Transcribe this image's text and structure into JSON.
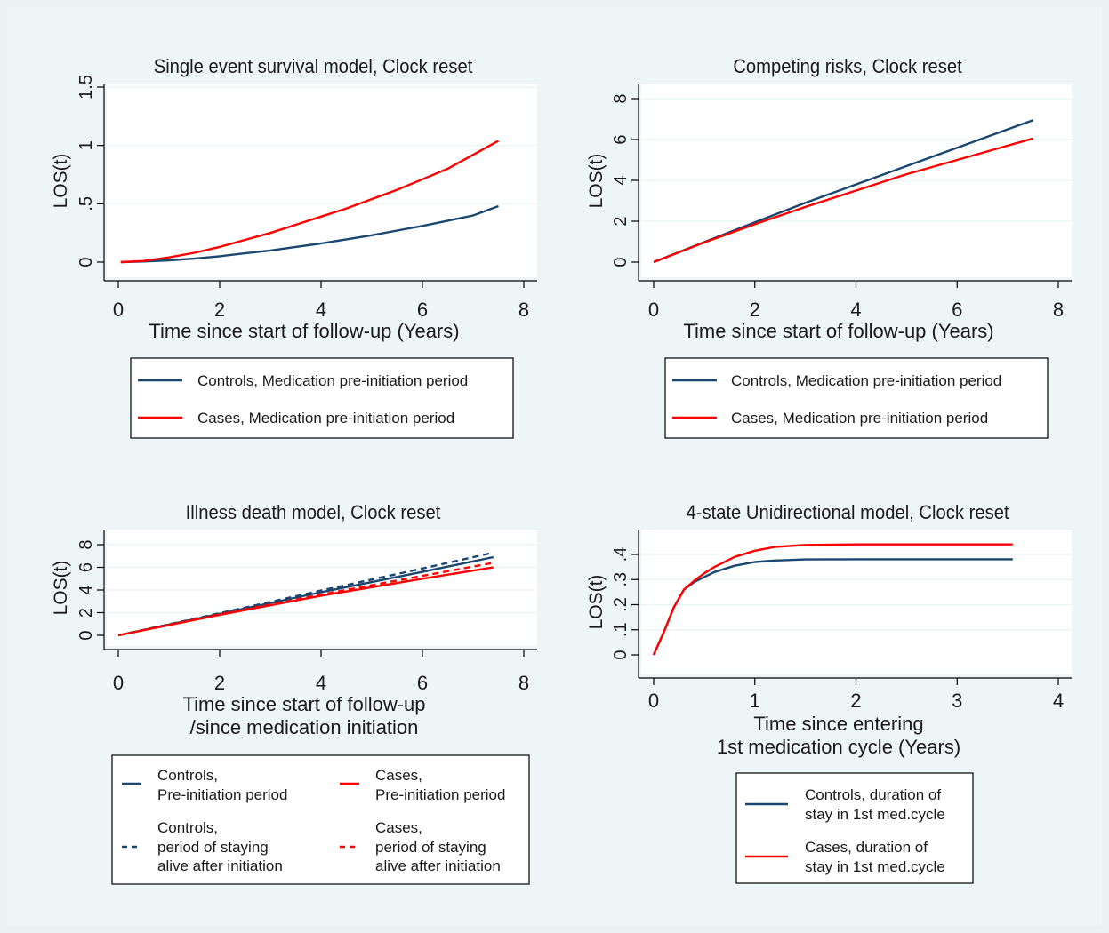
{
  "colors": {
    "outer_bg": "#eaf2f3",
    "panel_bg": "#ffffff",
    "controls": "#1a476f",
    "cases": "#ff0000"
  },
  "chart_data": [
    {
      "type": "line",
      "title": "Single event survival model, Clock reset",
      "xlabel": [
        "Time since start of follow-up (Years)"
      ],
      "ylabel": "LOS(t)",
      "xlim": [
        0,
        8
      ],
      "ylim": [
        0,
        1.5
      ],
      "xticks": [
        0,
        2,
        4,
        6,
        8
      ],
      "xtick_labels": [
        "0",
        "2",
        "4",
        "6",
        "8"
      ],
      "yticks": [
        0,
        0.5,
        1,
        1.5
      ],
      "ytick_labels": [
        "0",
        ".5",
        "1",
        "1.5"
      ],
      "grid": "horizontal",
      "series": [
        {
          "name": "Controls, Medication pre-initiation period",
          "color": "#1a476f",
          "dash": false,
          "x": [
            0.05,
            0.5,
            1,
            1.5,
            2,
            2.5,
            3,
            3.5,
            4,
            4.5,
            5,
            5.5,
            6,
            6.5,
            7,
            7.5
          ],
          "y": [
            0,
            0.005,
            0.015,
            0.03,
            0.05,
            0.075,
            0.1,
            0.13,
            0.16,
            0.195,
            0.23,
            0.27,
            0.31,
            0.355,
            0.4,
            0.48
          ]
        },
        {
          "name": "Cases, Medication pre-initiation period",
          "color": "#ff0000",
          "dash": false,
          "x": [
            0.05,
            0.5,
            1,
            1.5,
            2,
            2.5,
            3,
            3.5,
            4,
            4.5,
            5,
            5.5,
            6,
            6.5,
            7,
            7.5
          ],
          "y": [
            0,
            0.01,
            0.04,
            0.08,
            0.13,
            0.19,
            0.25,
            0.32,
            0.39,
            0.46,
            0.54,
            0.62,
            0.71,
            0.8,
            0.92,
            1.04
          ]
        }
      ],
      "legend": {
        "columns": 1,
        "items": [
          {
            "text": [
              "Controls, Medication pre-initiation period"
            ],
            "series": 0
          },
          {
            "text": [
              "Cases, Medication pre-initiation period"
            ],
            "series": 1
          }
        ]
      }
    },
    {
      "type": "line",
      "title": "Competing risks, Clock reset",
      "xlabel": [
        "Time since start of follow-up (Years)"
      ],
      "ylabel": "LOS(t)",
      "xlim": [
        0,
        8
      ],
      "ylim": [
        0,
        8
      ],
      "xticks": [
        0,
        2,
        4,
        6,
        8
      ],
      "xtick_labels": [
        "0",
        "2",
        "4",
        "6",
        "8"
      ],
      "yticks": [
        0,
        2,
        4,
        6,
        8
      ],
      "ytick_labels": [
        "0",
        "2",
        "4",
        "6",
        "8"
      ],
      "grid": "horizontal",
      "series": [
        {
          "name": "Controls, Medication pre-initiation period",
          "color": "#1a476f",
          "dash": false,
          "x": [
            0,
            1,
            2,
            3,
            4,
            5,
            6,
            7,
            7.5
          ],
          "y": [
            0,
            0.98,
            1.95,
            2.9,
            3.8,
            4.7,
            5.6,
            6.5,
            6.95
          ]
        },
        {
          "name": "Cases, Medication pre-initiation period",
          "color": "#ff0000",
          "dash": false,
          "x": [
            0,
            1,
            2,
            3,
            4,
            5,
            6,
            7,
            7.5
          ],
          "y": [
            0,
            0.96,
            1.85,
            2.7,
            3.5,
            4.3,
            5.0,
            5.7,
            6.05
          ]
        }
      ],
      "legend": {
        "columns": 1,
        "items": [
          {
            "text": [
              "Controls, Medication pre-initiation period"
            ],
            "series": 0
          },
          {
            "text": [
              "Cases, Medication pre-initiation period"
            ],
            "series": 1
          }
        ]
      }
    },
    {
      "type": "line",
      "title": "Illness death model, Clock reset",
      "xlabel": [
        "Time since start of follow-up",
        "/since medication initiation"
      ],
      "ylabel": "LOS(t)",
      "xlim": [
        0,
        8
      ],
      "ylim": [
        0,
        8
      ],
      "xticks": [
        0,
        2,
        4,
        6,
        8
      ],
      "xtick_labels": [
        "0",
        "2",
        "4",
        "6",
        "8"
      ],
      "yticks": [
        0,
        2,
        4,
        6,
        8
      ],
      "ytick_labels": [
        "0",
        "2",
        "4",
        "6",
        "8"
      ],
      "grid": "horizontal",
      "series": [
        {
          "name": "Controls, Pre-initiation period",
          "color": "#1a476f",
          "dash": false,
          "x": [
            0,
            2,
            4,
            6,
            7.4
          ],
          "y": [
            0,
            1.9,
            3.8,
            5.6,
            6.9
          ]
        },
        {
          "name": "Cases, Pre-initiation period",
          "color": "#ff0000",
          "dash": false,
          "x": [
            0,
            2,
            4,
            6,
            7.4
          ],
          "y": [
            0,
            1.8,
            3.5,
            5.0,
            6.0
          ]
        },
        {
          "name": "Controls, period of staying alive after initiation",
          "color": "#1a476f",
          "dash": true,
          "x": [
            0,
            2,
            4,
            6,
            7.4
          ],
          "y": [
            0,
            1.95,
            3.95,
            5.9,
            7.3
          ]
        },
        {
          "name": "Cases, period of staying alive after initiation",
          "color": "#ff0000",
          "dash": true,
          "x": [
            0,
            2,
            4,
            6,
            7.4
          ],
          "y": [
            0,
            1.85,
            3.6,
            5.25,
            6.4
          ]
        }
      ],
      "legend": {
        "columns": 2,
        "items": [
          {
            "text": [
              "Controls,",
              "Pre-initiation period"
            ],
            "series": 0
          },
          {
            "text": [
              "Cases,",
              "Pre-initiation period"
            ],
            "series": 1
          },
          {
            "text": [
              "Controls,",
              "period of staying",
              "alive after initiation"
            ],
            "series": 2
          },
          {
            "text": [
              "Cases,",
              "period of staying",
              "alive after initiation"
            ],
            "series": 3
          }
        ]
      }
    },
    {
      "type": "line",
      "title": "4-state Unidirectional model, Clock reset",
      "xlabel": [
        "Time since entering",
        "1st medication cycle (Years)"
      ],
      "ylabel": "LOS(t)",
      "xlim": [
        0,
        4
      ],
      "ylim": [
        0,
        0.48
      ],
      "xticks": [
        0,
        1,
        2,
        3,
        4
      ],
      "xtick_labels": [
        "0",
        "1",
        "2",
        "3",
        "4"
      ],
      "yticks": [
        0,
        0.1,
        0.2,
        0.3,
        0.4
      ],
      "ytick_labels": [
        "0",
        ".1",
        ".2",
        ".3",
        ".4"
      ],
      "grid": "horizontal",
      "series": [
        {
          "name": "Controls, duration of stay in 1st med.cycle",
          "color": "#1a476f",
          "dash": false,
          "x": [
            0,
            0.1,
            0.2,
            0.3,
            0.4,
            0.5,
            0.6,
            0.8,
            1.0,
            1.2,
            1.5,
            2.0,
            3.0,
            3.55
          ],
          "y": [
            0,
            0.09,
            0.19,
            0.26,
            0.29,
            0.31,
            0.33,
            0.355,
            0.37,
            0.376,
            0.38,
            0.381,
            0.381,
            0.381
          ]
        },
        {
          "name": "Cases, duration of stay in 1st med.cycle",
          "color": "#ff0000",
          "dash": false,
          "x": [
            0,
            0.1,
            0.2,
            0.3,
            0.4,
            0.5,
            0.6,
            0.8,
            1.0,
            1.2,
            1.5,
            2.0,
            3.0,
            3.55
          ],
          "y": [
            0,
            0.09,
            0.19,
            0.26,
            0.295,
            0.325,
            0.35,
            0.39,
            0.415,
            0.43,
            0.438,
            0.44,
            0.44,
            0.44
          ]
        }
      ],
      "legend": {
        "columns": 1,
        "items": [
          {
            "text": [
              "Controls, duration of",
              "stay in 1st med.cycle"
            ],
            "series": 0
          },
          {
            "text": [
              "Cases, duration of",
              "stay in 1st med.cycle"
            ],
            "series": 1
          }
        ]
      }
    }
  ]
}
